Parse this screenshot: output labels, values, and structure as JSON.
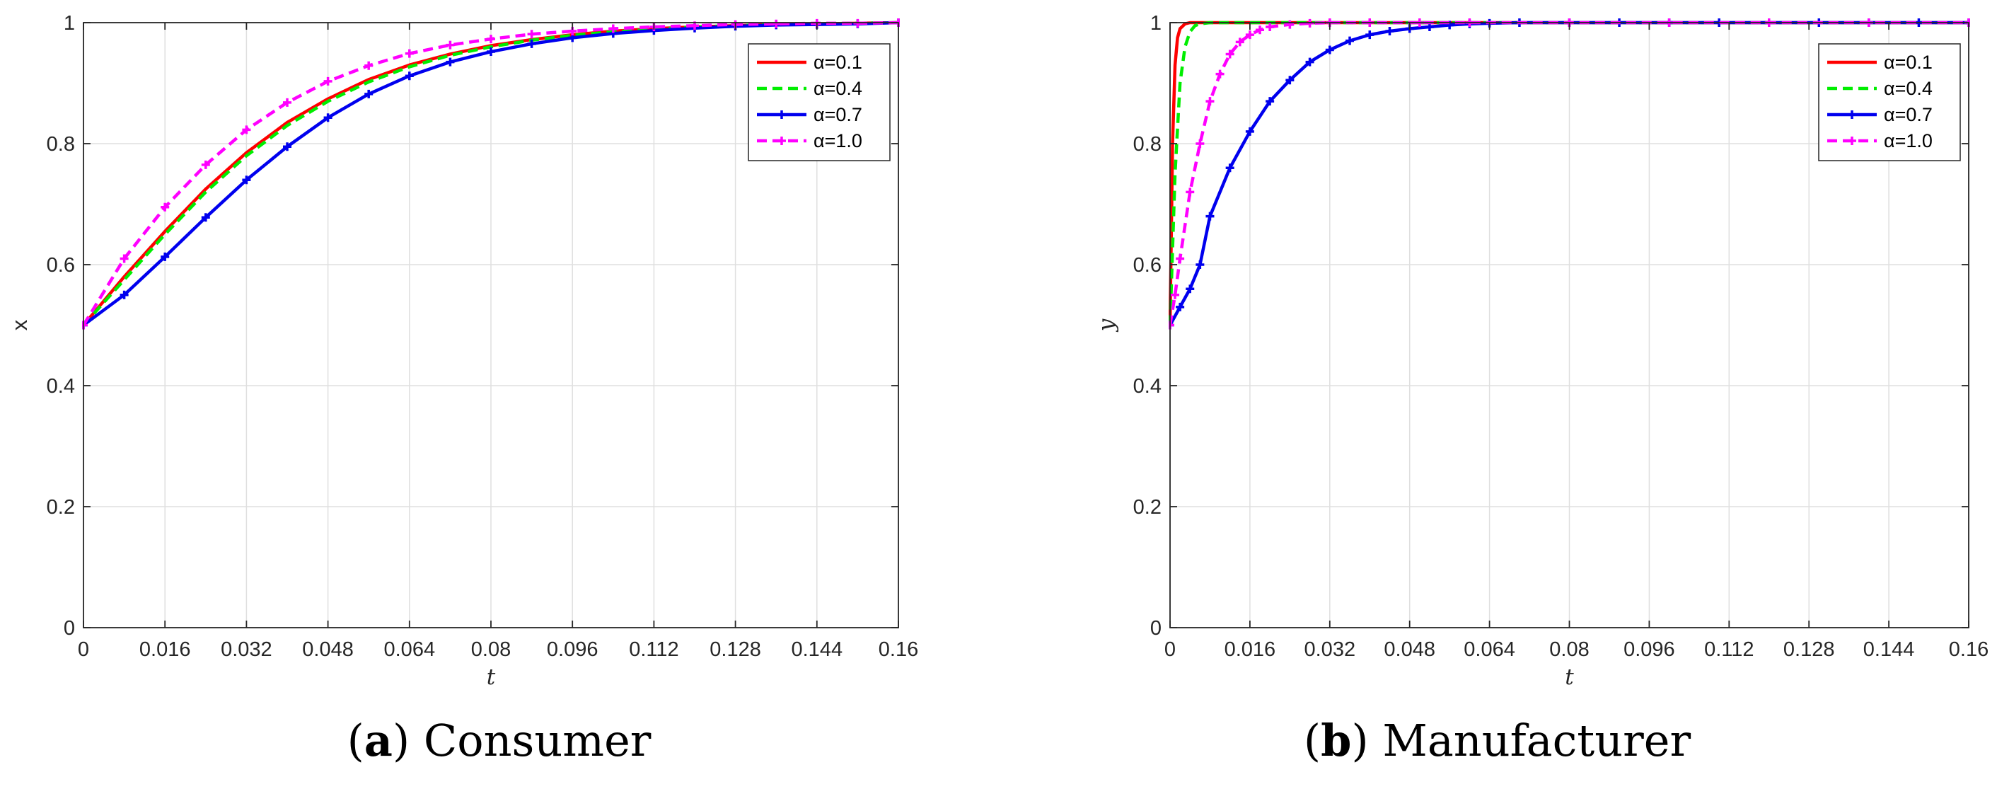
{
  "chart_data": [
    {
      "type": "line",
      "id": "a",
      "caption_letter": "a",
      "caption_text": "Consumer",
      "xlabel": "t",
      "ylabel": "x",
      "xlim": [
        0,
        0.16
      ],
      "ylim": [
        0,
        1
      ],
      "xticks": [
        0,
        0.016,
        0.032,
        0.048,
        0.064,
        0.08,
        0.096,
        0.112,
        0.128,
        0.144,
        0.16
      ],
      "xtick_labels": [
        "0",
        "0.016",
        "0.032",
        "0.048",
        "0.064",
        "0.08",
        "0.096",
        "0.112",
        "0.128",
        "0.144",
        "0.16"
      ],
      "yticks": [
        0,
        0.2,
        0.4,
        0.6,
        0.8,
        1
      ],
      "ytick_labels": [
        "0",
        "0.2",
        "0.4",
        "0.6",
        "0.8",
        "1"
      ],
      "grid": true,
      "legend_position": "top-right",
      "series": [
        {
          "name": "α=0.1",
          "color": "#ff0000",
          "style": "solid",
          "marker": "none",
          "x": [
            0,
            0.008,
            0.016,
            0.024,
            0.032,
            0.04,
            0.048,
            0.056,
            0.064,
            0.072,
            0.08,
            0.088,
            0.096,
            0.104,
            0.112,
            0.12,
            0.128,
            0.136,
            0.144,
            0.152,
            0.16
          ],
          "y": [
            0.5,
            0.58,
            0.655,
            0.725,
            0.785,
            0.835,
            0.874,
            0.906,
            0.93,
            0.948,
            0.962,
            0.972,
            0.98,
            0.986,
            0.99,
            0.993,
            0.995,
            0.997,
            0.998,
            0.999,
            1.0
          ]
        },
        {
          "name": "α=0.4",
          "color": "#00ee00",
          "style": "dashed",
          "marker": "none",
          "x": [
            0,
            0.008,
            0.016,
            0.024,
            0.032,
            0.04,
            0.048,
            0.056,
            0.064,
            0.072,
            0.08,
            0.088,
            0.096,
            0.104,
            0.112,
            0.12,
            0.128,
            0.136,
            0.144,
            0.152,
            0.16
          ],
          "y": [
            0.5,
            0.575,
            0.65,
            0.72,
            0.78,
            0.83,
            0.87,
            0.902,
            0.927,
            0.946,
            0.96,
            0.971,
            0.979,
            0.985,
            0.989,
            0.993,
            0.995,
            0.997,
            0.998,
            0.999,
            1.0
          ]
        },
        {
          "name": "α=0.7",
          "color": "#0000ee",
          "style": "solid",
          "marker": "plus",
          "x": [
            0,
            0.008,
            0.016,
            0.024,
            0.032,
            0.04,
            0.048,
            0.056,
            0.064,
            0.072,
            0.08,
            0.088,
            0.096,
            0.104,
            0.112,
            0.12,
            0.128,
            0.136,
            0.144,
            0.152,
            0.16
          ],
          "y": [
            0.5,
            0.55,
            0.613,
            0.678,
            0.74,
            0.795,
            0.843,
            0.882,
            0.912,
            0.935,
            0.952,
            0.965,
            0.975,
            0.982,
            0.987,
            0.991,
            0.994,
            0.996,
            0.997,
            0.998,
            1.0
          ]
        },
        {
          "name": "α=1.0",
          "color": "#ff00ff",
          "style": "dashed",
          "marker": "plus",
          "x": [
            0,
            0.008,
            0.016,
            0.024,
            0.032,
            0.04,
            0.048,
            0.056,
            0.064,
            0.072,
            0.08,
            0.088,
            0.096,
            0.104,
            0.112,
            0.12,
            0.128,
            0.136,
            0.144,
            0.152,
            0.16
          ],
          "y": [
            0.5,
            0.61,
            0.695,
            0.765,
            0.823,
            0.868,
            0.903,
            0.929,
            0.949,
            0.963,
            0.973,
            0.981,
            0.986,
            0.99,
            0.993,
            0.995,
            0.997,
            0.998,
            0.999,
            0.999,
            1.0
          ]
        }
      ]
    },
    {
      "type": "line",
      "id": "b",
      "caption_letter": "b",
      "caption_text": "Manufacturer",
      "xlabel": "t",
      "ylabel": "y",
      "xlim": [
        0,
        0.16
      ],
      "ylim": [
        0,
        1
      ],
      "xticks": [
        0,
        0.016,
        0.032,
        0.048,
        0.064,
        0.08,
        0.096,
        0.112,
        0.128,
        0.144,
        0.16
      ],
      "xtick_labels": [
        "0",
        "0.016",
        "0.032",
        "0.048",
        "0.064",
        "0.08",
        "0.096",
        "0.112",
        "0.128",
        "0.144",
        "0.16"
      ],
      "yticks": [
        0,
        0.2,
        0.4,
        0.6,
        0.8,
        1
      ],
      "ytick_labels": [
        "0",
        "0.2",
        "0.4",
        "0.6",
        "0.8",
        "1"
      ],
      "grid": true,
      "legend_position": "top-right",
      "series": [
        {
          "name": "α=0.1",
          "color": "#ff0000",
          "style": "solid",
          "marker": "none",
          "x": [
            0,
            0.0005,
            0.001,
            0.0015,
            0.002,
            0.003,
            0.004,
            0.16
          ],
          "y": [
            0.5,
            0.8,
            0.93,
            0.975,
            0.99,
            0.998,
            1.0,
            1.0
          ]
        },
        {
          "name": "α=0.4",
          "color": "#00ee00",
          "style": "dashed",
          "marker": "none",
          "x": [
            0,
            0.001,
            0.002,
            0.003,
            0.004,
            0.005,
            0.006,
            0.008,
            0.16
          ],
          "y": [
            0.5,
            0.75,
            0.9,
            0.96,
            0.985,
            0.995,
            0.998,
            1.0,
            1.0
          ]
        },
        {
          "name": "α=0.7",
          "color": "#0000ee",
          "style": "solid",
          "marker": "plus",
          "x": [
            0,
            0.002,
            0.004,
            0.006,
            0.008,
            0.012,
            0.016,
            0.02,
            0.024,
            0.028,
            0.032,
            0.036,
            0.04,
            0.044,
            0.048,
            0.052,
            0.056,
            0.06,
            0.064,
            0.07,
            0.08,
            0.09,
            0.1,
            0.11,
            0.12,
            0.13,
            0.14,
            0.15,
            0.16
          ],
          "y": [
            0.5,
            0.53,
            0.56,
            0.6,
            0.68,
            0.76,
            0.82,
            0.87,
            0.905,
            0.935,
            0.955,
            0.97,
            0.98,
            0.986,
            0.99,
            0.993,
            0.996,
            0.998,
            0.999,
            1.0,
            1.0,
            1.0,
            1.0,
            1.0,
            1.0,
            1.0,
            1.0,
            1.0,
            1.0
          ]
        },
        {
          "name": "α=1.0",
          "color": "#ff00ff",
          "style": "dashed",
          "marker": "plus",
          "x": [
            0,
            0.001,
            0.002,
            0.004,
            0.006,
            0.008,
            0.01,
            0.012,
            0.014,
            0.016,
            0.018,
            0.02,
            0.024,
            0.028,
            0.032,
            0.04,
            0.05,
            0.06,
            0.08,
            0.1,
            0.12,
            0.14,
            0.16
          ],
          "y": [
            0.5,
            0.55,
            0.61,
            0.72,
            0.8,
            0.87,
            0.915,
            0.948,
            0.968,
            0.98,
            0.988,
            0.993,
            0.997,
            0.999,
            1.0,
            1.0,
            1.0,
            1.0,
            1.0,
            1.0,
            1.0,
            1.0,
            1.0
          ]
        }
      ]
    }
  ]
}
